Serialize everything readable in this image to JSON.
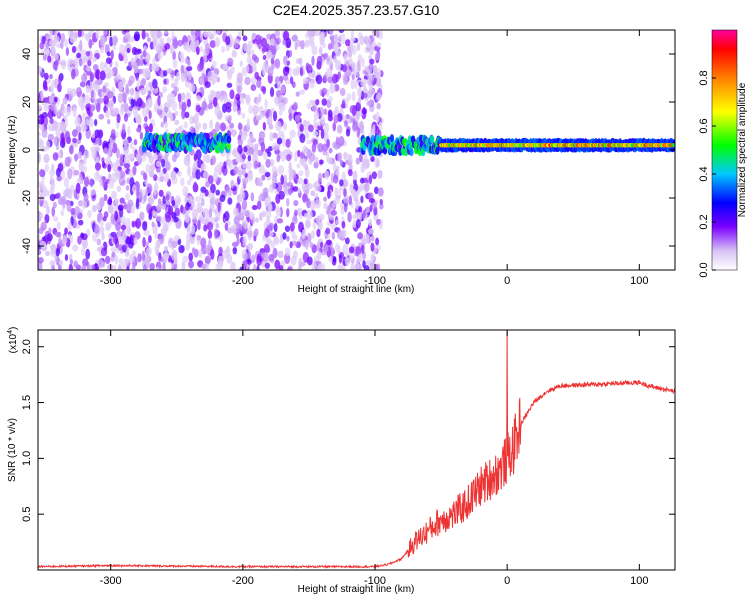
{
  "title": "C2E4.2025.357.23.57.G10",
  "colors": {
    "snr_line": "#ee3333",
    "frame": "#000000"
  },
  "chart_data": [
    {
      "type": "heatmap",
      "name": "spectrogram",
      "xlabel": "Height of straight line (km)",
      "ylabel": "Frequency (Hz)",
      "xlim": [
        -355,
        127
      ],
      "ylim": [
        -50,
        50
      ],
      "xticks": [
        -300,
        -200,
        -100,
        0,
        100
      ],
      "xtick_labels": [
        "-300",
        "-200",
        "-100",
        "0",
        "100"
      ],
      "yticks": [
        -40,
        -20,
        0,
        20,
        40
      ],
      "ytick_labels": [
        "-40",
        "-20",
        "0",
        "20",
        "40"
      ],
      "noise_region": [
        -355,
        -95
      ],
      "carrier_segments": [
        {
          "x": [
            -275,
            -210
          ],
          "y": 3,
          "amp": 0.3
        },
        {
          "x": [
            -110,
            -50
          ],
          "y": 2,
          "amp": 0.35
        },
        {
          "x": [
            -50,
            127
          ],
          "y": 2,
          "amp": 0.85
        }
      ],
      "colorbar": {
        "label": "Normalized spectral amplitude",
        "range": [
          0,
          1
        ],
        "ticks": [
          0.0,
          0.2,
          0.4,
          0.6,
          0.8
        ],
        "tick_labels": [
          "0.0",
          "0.2",
          "0.4",
          "0.6",
          "0.8"
        ]
      }
    },
    {
      "type": "line",
      "name": "snr",
      "xlabel": "Height of straight line (km)",
      "ylabel": "SNR (10 * v/v)",
      "scale_label": "(x10",
      "scale_exp": "4",
      "scale_close": ")",
      "xlim": [
        -355,
        127
      ],
      "ylim": [
        0,
        2.15
      ],
      "xticks": [
        -300,
        -200,
        -100,
        0,
        100
      ],
      "xtick_labels": [
        "-300",
        "-200",
        "-100",
        "0",
        "100"
      ],
      "yticks": [
        0.5,
        1.0,
        1.5,
        2.0
      ],
      "ytick_labels": [
        "0.5",
        "1.0",
        "1.5",
        "2.0"
      ],
      "series": [
        {
          "name": "SNR",
          "x": [
            -355,
            -300,
            -200,
            -100,
            -90,
            -80,
            -70,
            -60,
            -50,
            -40,
            -30,
            -20,
            -10,
            -5,
            0,
            5,
            10,
            20,
            30,
            40,
            60,
            80,
            100,
            110,
            127
          ],
          "y": [
            0.03,
            0.04,
            0.03,
            0.03,
            0.05,
            0.1,
            0.25,
            0.35,
            0.45,
            0.5,
            0.6,
            0.75,
            0.85,
            0.9,
            1.0,
            1.1,
            1.3,
            1.5,
            1.6,
            1.65,
            1.66,
            1.67,
            1.68,
            1.64,
            1.6
          ],
          "spike": {
            "x": 0,
            "y": 2.15
          }
        }
      ]
    }
  ]
}
